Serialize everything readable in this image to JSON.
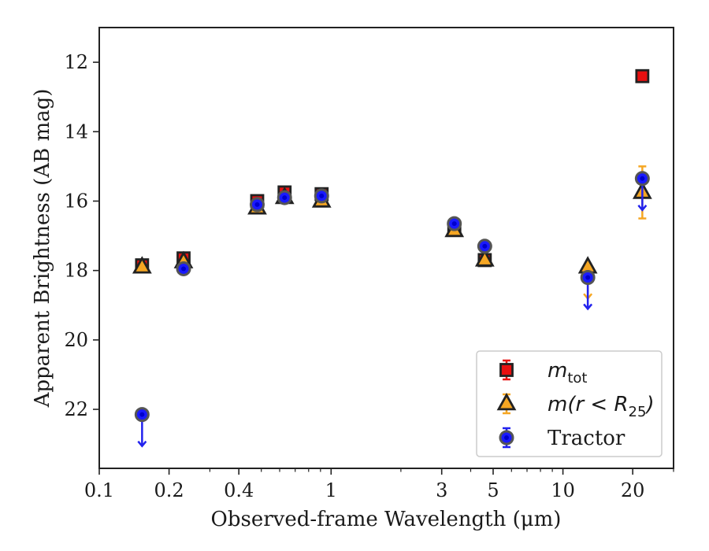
{
  "chart_data": {
    "type": "scatter",
    "xlabel": "Observed-frame Wavelength (μm)",
    "ylabel": "Apparent Brightness (AB mag)",
    "xscale": "log",
    "xlim": [
      0.1,
      30
    ],
    "ylim": [
      23.7,
      11.0
    ],
    "y_inverted": true,
    "x_major_ticks": [
      {
        "value": 0.1,
        "label": "0.1"
      },
      {
        "value": 0.2,
        "label": "0.2"
      },
      {
        "value": 0.4,
        "label": "0.4"
      },
      {
        "value": 1,
        "label": "1"
      },
      {
        "value": 3,
        "label": "3"
      },
      {
        "value": 5,
        "label": "5"
      },
      {
        "value": 10,
        "label": "10"
      },
      {
        "value": 20,
        "label": "20"
      }
    ],
    "y_ticks": [
      12,
      14,
      16,
      18,
      20,
      22
    ],
    "legend_position": "lower-right",
    "series": [
      {
        "name": "m_tot",
        "marker": "square",
        "color": "#e81010",
        "edge": "#222222",
        "points": [
          {
            "x": 0.153,
            "y": 17.85,
            "err": 0.0
          },
          {
            "x": 0.231,
            "y": 17.65,
            "err": 0.05
          },
          {
            "x": 0.48,
            "y": 16.0,
            "err": 0.05
          },
          {
            "x": 0.63,
            "y": 15.75,
            "err": 0.05
          },
          {
            "x": 0.91,
            "y": 15.8,
            "err": 0.0
          },
          {
            "x": 3.4,
            "y": 16.8,
            "err": 0.0
          },
          {
            "x": 4.6,
            "y": 17.7,
            "err": 0.0
          },
          {
            "x": 22,
            "y": 12.4,
            "err": 0.0
          }
        ]
      },
      {
        "name": "m(r<R25)",
        "marker": "triangle",
        "color": "#f5a623",
        "edge": "#222222",
        "points": [
          {
            "x": 0.153,
            "y": 17.9,
            "err": 0.0,
            "upper_limit": false
          },
          {
            "x": 0.231,
            "y": 17.75,
            "err": 0.0,
            "upper_limit": false
          },
          {
            "x": 0.48,
            "y": 16.2,
            "err": 0.0,
            "upper_limit": false
          },
          {
            "x": 0.63,
            "y": 15.9,
            "err": 0.0,
            "upper_limit": false
          },
          {
            "x": 0.91,
            "y": 16.0,
            "err": 0.0,
            "upper_limit": false
          },
          {
            "x": 3.4,
            "y": 16.85,
            "err": 0.0,
            "upper_limit": false
          },
          {
            "x": 4.6,
            "y": 17.7,
            "err": 0.0,
            "upper_limit": false
          },
          {
            "x": 12.8,
            "y": 17.9,
            "err": 0.0,
            "upper_limit": true
          },
          {
            "x": 22,
            "y": 15.75,
            "err": 0.75,
            "upper_limit": false
          }
        ]
      },
      {
        "name": "Tractor",
        "marker": "circle",
        "color": "#1a1aff",
        "edge": "#555555",
        "points": [
          {
            "x": 0.153,
            "y": 22.15,
            "err": 0.0,
            "upper_limit": true
          },
          {
            "x": 0.231,
            "y": 17.95,
            "err": 0.0,
            "upper_limit": false
          },
          {
            "x": 0.48,
            "y": 16.1,
            "err": 0.0,
            "upper_limit": false
          },
          {
            "x": 0.63,
            "y": 15.9,
            "err": 0.0,
            "upper_limit": false
          },
          {
            "x": 0.91,
            "y": 15.85,
            "err": 0.0,
            "upper_limit": false
          },
          {
            "x": 3.4,
            "y": 16.65,
            "err": 0.0,
            "upper_limit": false
          },
          {
            "x": 4.6,
            "y": 17.3,
            "err": 0.0,
            "upper_limit": false
          },
          {
            "x": 12.8,
            "y": 18.2,
            "err": 0.0,
            "upper_limit": true
          },
          {
            "x": 22,
            "y": 15.35,
            "err": 0.0,
            "upper_limit": true
          }
        ]
      }
    ],
    "legend": {
      "entries": [
        {
          "series": "m_tot",
          "main": "m",
          "sub": "tot",
          "suffix": ""
        },
        {
          "series": "m(r<R25)",
          "main": "m(r < R",
          "sub": "25",
          "suffix": ")"
        },
        {
          "series": "Tractor",
          "main": "Tractor",
          "sub": "",
          "suffix": ""
        }
      ]
    }
  }
}
